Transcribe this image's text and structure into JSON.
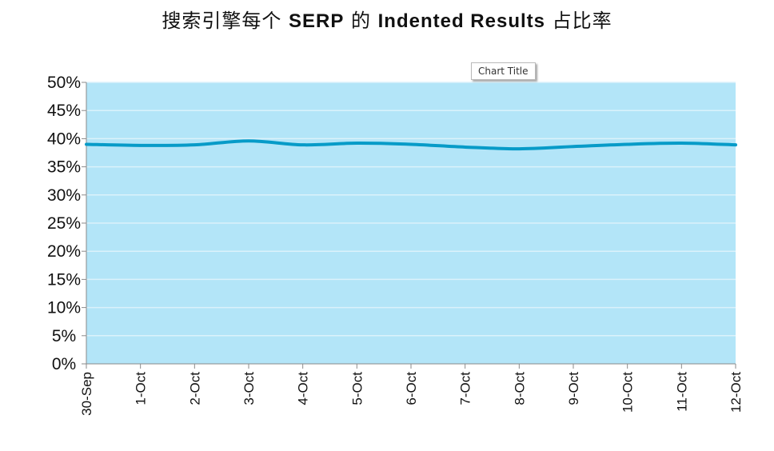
{
  "title_cn_prefix": "搜索引擎每个",
  "title_latin": "SERP",
  "title_cn_mid": "的",
  "title_latin2": "Indented Results",
  "title_cn_suffix": "占比率",
  "tooltip": "Chart Title",
  "colors": {
    "plot_bg": "#b3e5f8",
    "line": "#079bc8",
    "grid": "#dbf2fb",
    "axis": "#8a8a8a"
  },
  "chart_data": {
    "type": "line",
    "title": "搜索引擎每个 SERP 的 Indented Results 占比率",
    "categories": [
      "30-Sep",
      "1-Oct",
      "2-Oct",
      "3-Oct",
      "4-Oct",
      "5-Oct",
      "6-Oct",
      "7-Oct",
      "8-Oct",
      "9-Oct",
      "10-Oct",
      "11-Oct",
      "12-Oct"
    ],
    "series": [
      {
        "values": [
          39.0,
          38.8,
          38.9,
          39.6,
          38.9,
          39.2,
          39.0,
          38.5,
          38.2,
          38.6,
          39.0,
          39.2,
          38.9
        ]
      }
    ],
    "ylim": [
      0,
      50
    ],
    "yticks": [
      "0%",
      "5%",
      "10%",
      "15%",
      "20%",
      "25%",
      "30%",
      "35%",
      "40%",
      "45%",
      "50%"
    ],
    "grid": true,
    "legend": "none"
  }
}
